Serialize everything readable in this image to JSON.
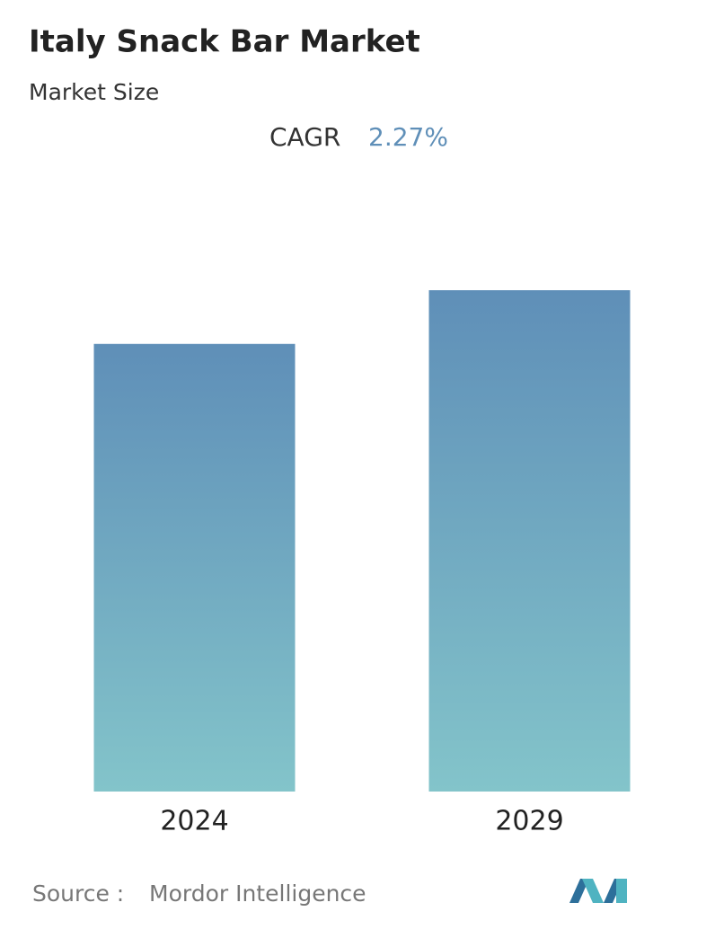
{
  "chart_data": {
    "type": "bar",
    "title": "Italy Snack Bar Market",
    "subtitle": "Market Size",
    "cagr_label": "CAGR",
    "cagr_value": "2.27%",
    "categories": [
      "2024",
      "2029"
    ],
    "values": [
      100,
      112
    ],
    "ylim": [
      0,
      112
    ],
    "gradient": [
      "#5f8fb8",
      "#83c4ca"
    ],
    "source_label": "Source :",
    "source": "Mordor Intelligence"
  }
}
